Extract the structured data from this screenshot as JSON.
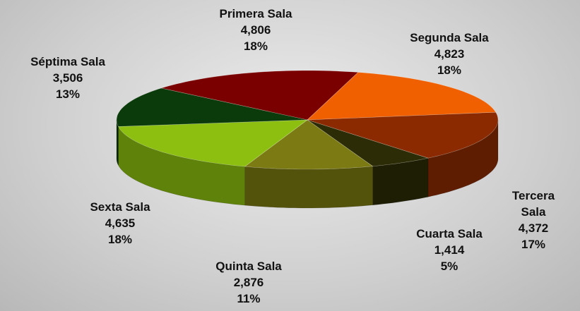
{
  "chart_data": {
    "type": "pie3d",
    "categories": [
      "Primera Sala",
      "Segunda Sala",
      "Tercera Sala",
      "Cuarta Sala",
      "Quinta Sala",
      "Sexta Sala",
      "Séptima Sala"
    ],
    "values": [
      4806,
      4823,
      4372,
      1414,
      2876,
      4635,
      3506
    ],
    "value_labels": [
      "4,806",
      "4,823",
      "4,372",
      "1,414",
      "2,876",
      "4,635",
      "3,506"
    ],
    "percents": [
      18,
      18,
      17,
      5,
      11,
      18,
      13
    ],
    "percent_labels": [
      "18%",
      "18%",
      "17%",
      "5%",
      "11%",
      "18%",
      "13%"
    ],
    "colors": [
      "#7a0000",
      "#f06000",
      "#8b2a00",
      "#2c2c06",
      "#7c7a12",
      "#8cbf10",
      "#0b3b0b"
    ]
  }
}
